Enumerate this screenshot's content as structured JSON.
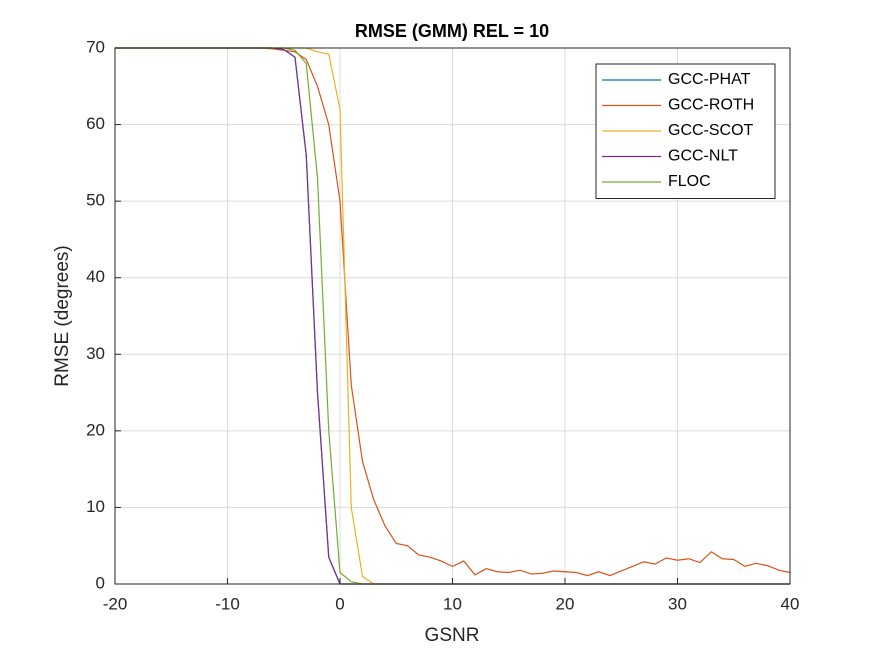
{
  "chart_data": {
    "type": "line",
    "title": "RMSE (GMM) REL = 10",
    "x_label": "GSNR",
    "y_label": "RMSE (degrees)",
    "x": [
      -20,
      -19,
      -18,
      -17,
      -16,
      -15,
      -14,
      -13,
      -12,
      -11,
      -10,
      -9,
      -8,
      -7,
      -6,
      -5,
      -4,
      -3,
      -2,
      -1,
      0,
      1,
      2,
      3,
      4,
      5,
      6,
      7,
      8,
      9,
      10,
      11,
      12,
      13,
      14,
      15,
      16,
      17,
      18,
      19,
      20,
      21,
      22,
      23,
      24,
      25,
      26,
      27,
      28,
      29,
      30,
      31,
      32,
      33,
      34,
      35,
      36,
      37,
      38,
      39,
      40
    ],
    "series": [
      {
        "name": "GCC-PHAT",
        "color": "#0072BD",
        "values": [
          70,
          70,
          70,
          70,
          70,
          70,
          70,
          70,
          70,
          70,
          70,
          70,
          70,
          70,
          70,
          69.8,
          68.8,
          56,
          25,
          3.5,
          0,
          0,
          0,
          0,
          0,
          0,
          0,
          0,
          0,
          0,
          0,
          0,
          0,
          0,
          0,
          0,
          0,
          0,
          0,
          0,
          0,
          0,
          0,
          0,
          0,
          0,
          0,
          0,
          0,
          0,
          0,
          0,
          0,
          0,
          0,
          0,
          0,
          0,
          0,
          0,
          0
        ]
      },
      {
        "name": "GCC-ROTH",
        "color": "#D95319",
        "values": [
          70,
          70,
          70,
          70,
          70,
          70,
          70,
          70,
          70,
          70,
          70,
          70,
          70,
          70,
          69.9,
          69.7,
          69.5,
          68.5,
          65,
          60,
          50,
          26,
          16,
          11,
          7.6,
          5.3,
          5.0,
          3.8,
          3.5,
          3.0,
          2.3,
          3.0,
          1.2,
          2.0,
          1.6,
          1.5,
          1.8,
          1.3,
          1.4,
          1.7,
          1.6,
          1.5,
          1.1,
          1.6,
          1.1,
          1.7,
          2.3,
          2.9,
          2.6,
          3.4,
          3.1,
          3.3,
          2.8,
          4.2,
          3.3,
          3.2,
          2.3,
          2.7,
          2.4,
          1.8,
          1.5
        ]
      },
      {
        "name": "GCC-SCOT",
        "color": "#EDB120",
        "values": [
          70,
          70,
          70,
          70,
          70,
          70,
          70,
          70,
          70,
          70,
          70,
          70,
          70,
          70,
          70,
          70,
          70,
          70,
          69.5,
          69.2,
          62,
          10,
          1,
          0,
          0,
          0,
          0,
          0,
          0,
          0,
          0,
          0,
          0,
          0,
          0,
          0,
          0,
          0,
          0,
          0,
          0,
          0,
          0,
          0,
          0,
          0,
          0,
          0,
          0,
          0,
          0,
          0,
          0,
          0,
          0,
          0,
          0,
          0,
          0,
          0,
          0
        ]
      },
      {
        "name": "GCC-NLT",
        "color": "#7E2F8E",
        "values": [
          70,
          70,
          70,
          70,
          70,
          70,
          70,
          70,
          70,
          70,
          70,
          70,
          70,
          70,
          70,
          69.8,
          68.8,
          56,
          25,
          3.5,
          0,
          0,
          0,
          0,
          0,
          0,
          0,
          0,
          0,
          0,
          0,
          0,
          0,
          0,
          0,
          0,
          0,
          0,
          0,
          0,
          0,
          0,
          0,
          0,
          0,
          0,
          0,
          0,
          0,
          0,
          0,
          0,
          0,
          0,
          0,
          0,
          0,
          0,
          0,
          0,
          0
        ]
      },
      {
        "name": "FLOC",
        "color": "#77AC30",
        "values": [
          70,
          70,
          70,
          70,
          70,
          70,
          70,
          70,
          70,
          70,
          70,
          70,
          70,
          70,
          70,
          70,
          69.7,
          68,
          53,
          20,
          1.5,
          0.3,
          0,
          0,
          0,
          0,
          0,
          0,
          0,
          0,
          0,
          0,
          0,
          0,
          0,
          0,
          0,
          0,
          0,
          0,
          0,
          0,
          0,
          0,
          0,
          0,
          0,
          0,
          0,
          0,
          0,
          0,
          0,
          0,
          0,
          0,
          0,
          0,
          0,
          0,
          0
        ]
      }
    ],
    "xlim": [
      -20,
      40
    ],
    "xticks": [
      -20,
      -10,
      0,
      10,
      20,
      30,
      40
    ],
    "ylim": [
      0,
      70
    ],
    "yticks": [
      0,
      10,
      20,
      30,
      40,
      50,
      60,
      70
    ],
    "grid": true,
    "legend": "top-right"
  }
}
